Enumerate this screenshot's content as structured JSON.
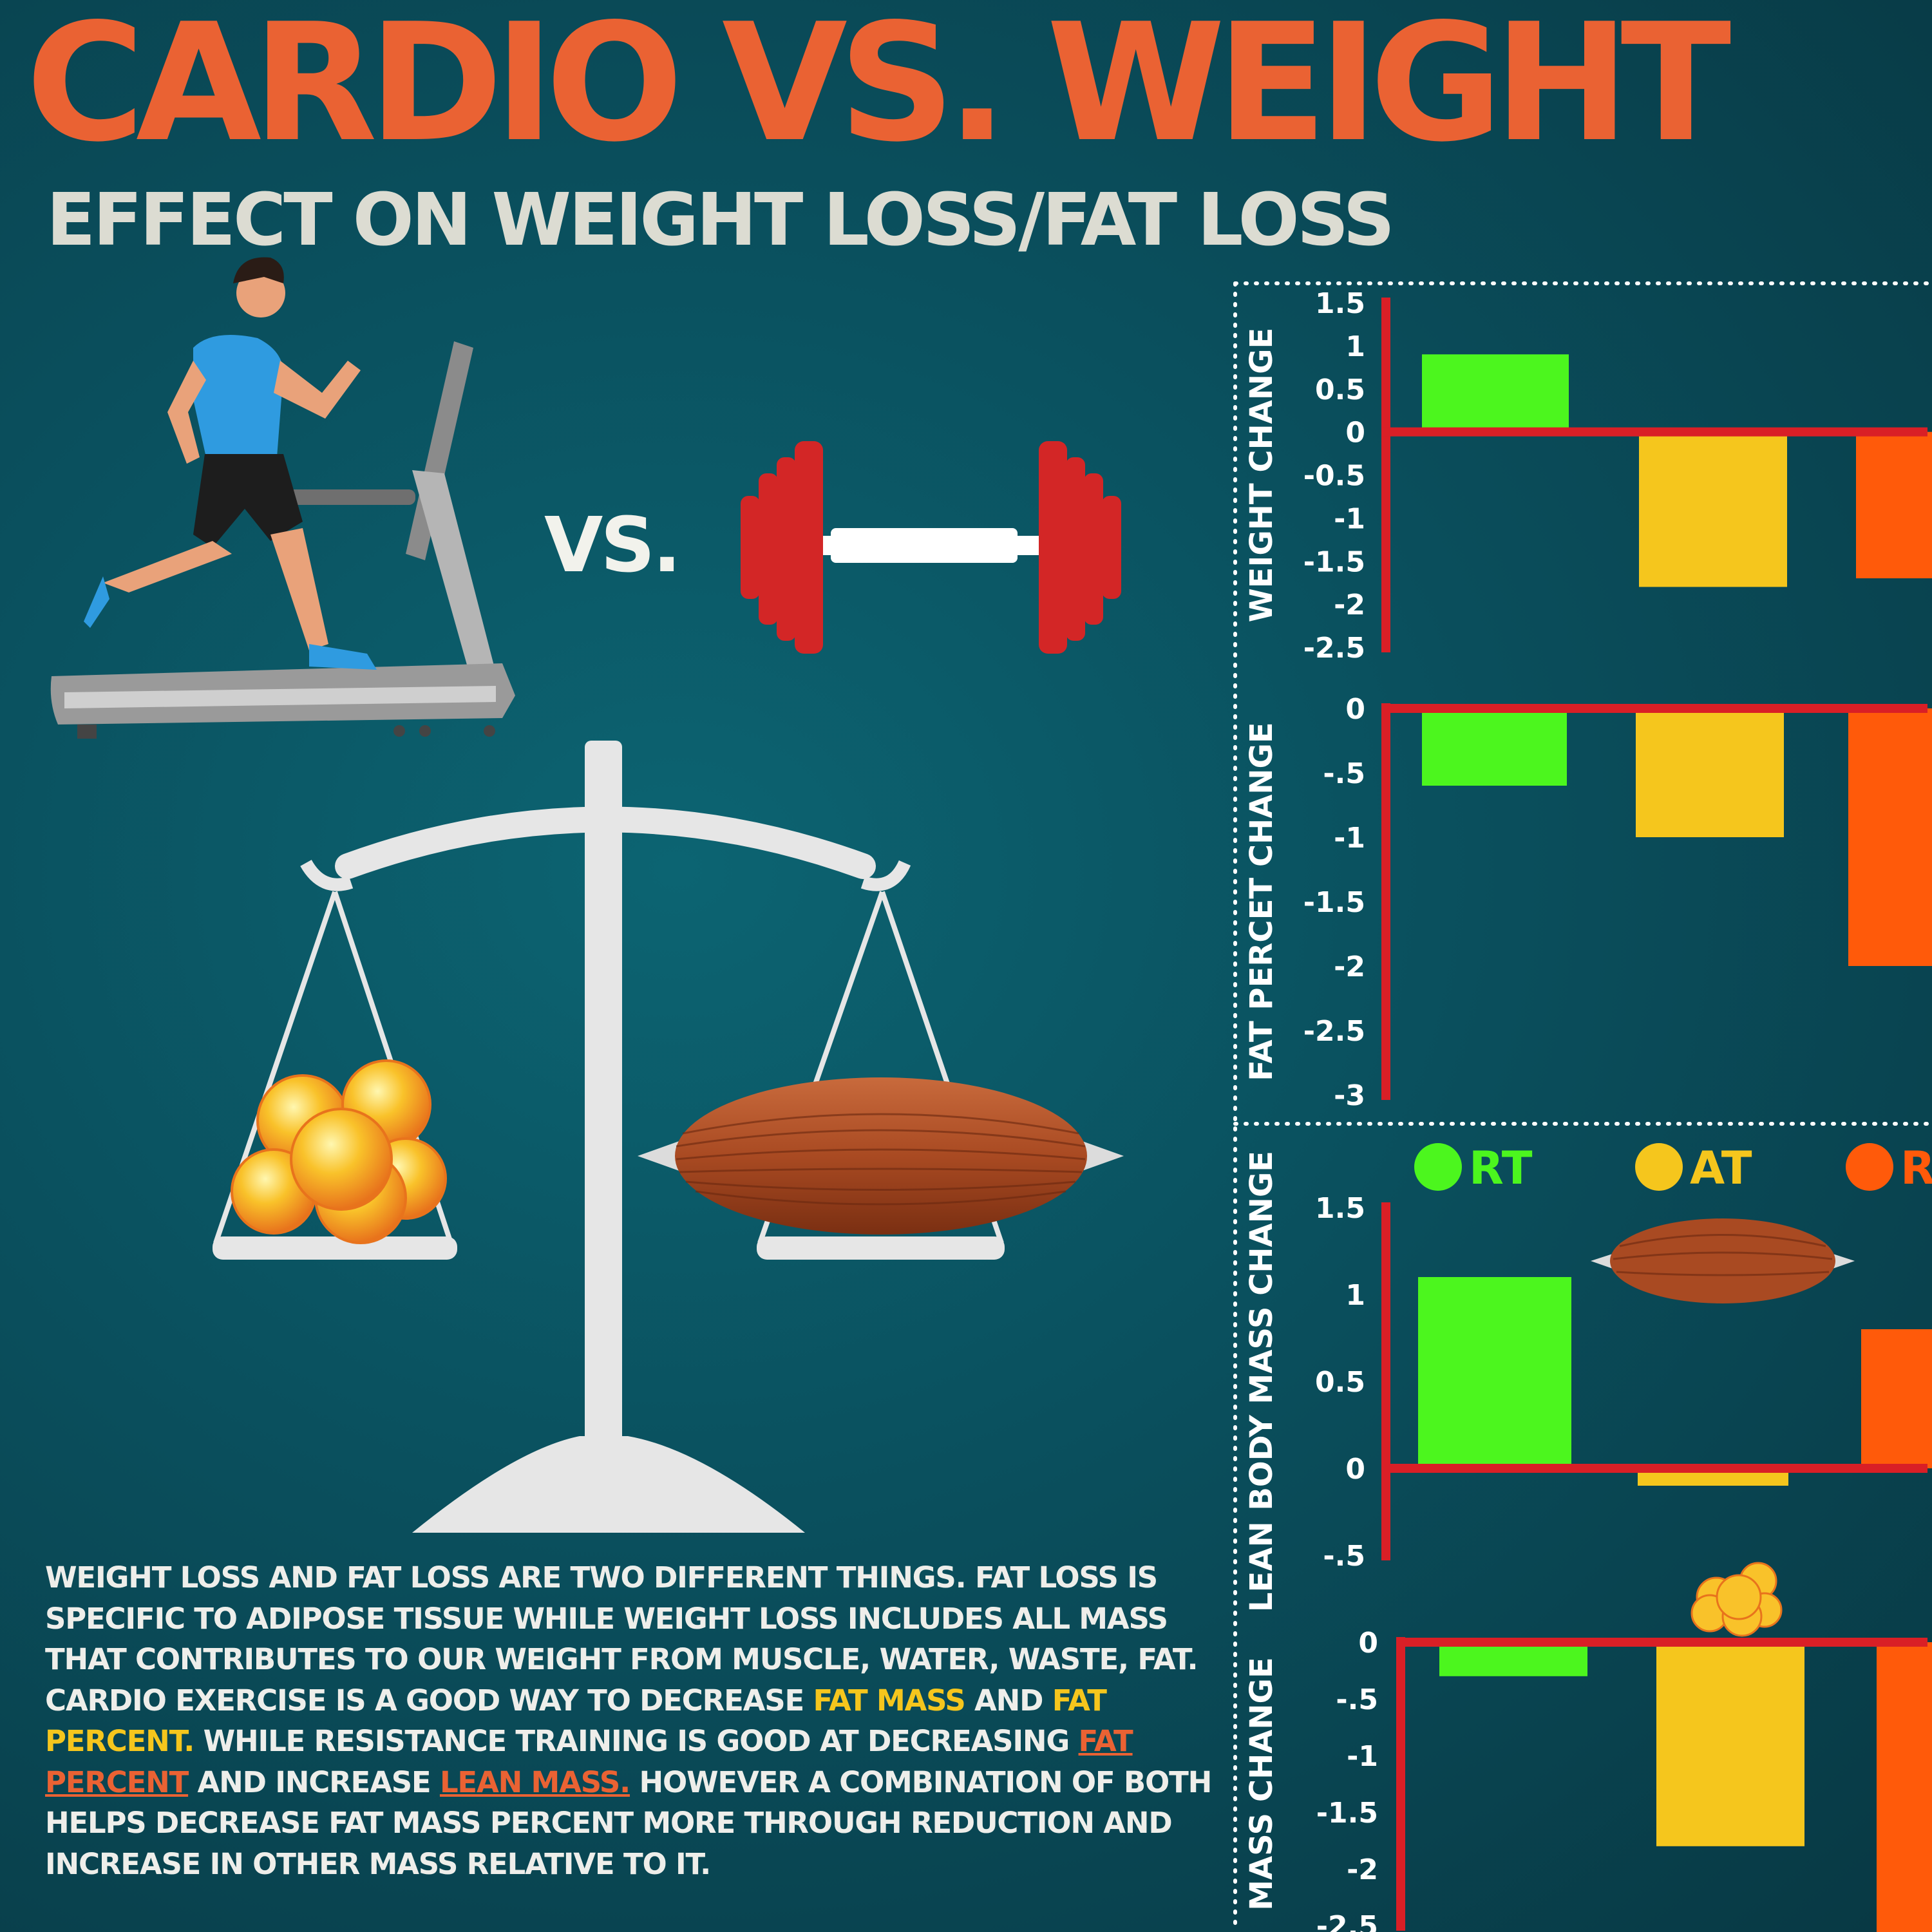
{
  "header": {
    "title": "CARDIO VS. WEIGHT",
    "subtitle": "EFFECT ON WEIGHT LOSS/FAT LOSS"
  },
  "illustration": {
    "vs_label": "VS.",
    "icons": [
      "treadmill-runner-icon",
      "dumbbell-icon",
      "balance-scale-icon",
      "fat-cells-icon",
      "muscle-icon"
    ]
  },
  "body_text": {
    "p1": "WEIGHT LOSS AND FAT LOSS ARE TWO DIFFERENT THINGS. FAT LOSS IS SPECIFIC TO ADIPOSE TISSUE WHILE WEIGHT LOSS INCLUDES ALL MASS THAT CONTRIBUTES TO OUR WEIGHT FROM MUSCLE, WATER, WASTE, FAT. CARDIO EXERCISE IS A GOOD WAY TO DECREASE ",
    "fat_mass": "FAT MASS",
    "and1": " AND ",
    "fat_percent_1": "FAT PERCENT.",
    "p2": " WHILE RESISTANCE TRAINING IS GOOD AT DECREASING ",
    "fat_percent_2": "FAT PERCENT",
    "and2": " AND INCREASE ",
    "lean_mass": "LEAN MASS.",
    "p3": " HOWEVER A COMBINATION OF BOTH HELPS DECREASE FAT MASS PERCENT MORE THROUGH REDUCTION AND INCREASE IN OTHER MASS RELATIVE TO IT."
  },
  "colors": {
    "RT": "#4cf61e",
    "AT": "#f5c61d",
    "third": "#ff5a0a",
    "axis": "#d91f26",
    "title": "#ea6233"
  },
  "chart_data": [
    {
      "type": "bar",
      "ylabel": "WEIGHT CHANGE",
      "ylim": [
        -2.5,
        1.5
      ],
      "ticks": [
        "1.5",
        "1",
        "0.5",
        "0",
        "-0.5",
        "-1",
        "-1.5",
        "-2",
        "-2.5"
      ],
      "tick_values": [
        1.5,
        1,
        0.5,
        0,
        -0.5,
        -1,
        -1.5,
        -2,
        -2.5
      ],
      "series": [
        {
          "key": "RT",
          "values": [
            0.9
          ]
        },
        {
          "key": "AT",
          "values": [
            -1.8
          ]
        },
        {
          "key": "third",
          "values": [
            -1.7
          ]
        }
      ]
    },
    {
      "type": "bar",
      "ylabel": "FAT PERCET CHANGE",
      "ylim": [
        -3,
        0
      ],
      "ticks": [
        "0",
        "-.5",
        "-1",
        "-1.5",
        "-2",
        "-2.5",
        "-3"
      ],
      "tick_values": [
        0,
        -0.5,
        -1,
        -1.5,
        -2,
        -2.5,
        -3
      ],
      "series": [
        {
          "key": "RT",
          "values": [
            -0.6
          ]
        },
        {
          "key": "AT",
          "values": [
            -1.0
          ]
        },
        {
          "key": "third",
          "values": [
            -2.0
          ]
        }
      ]
    },
    {
      "type": "bar",
      "ylabel": "LEAN BODY MASS CHANGE",
      "ylim": [
        -0.5,
        1.5
      ],
      "ticks": [
        "1.5",
        "1",
        "0.5",
        "0",
        "-.5"
      ],
      "tick_values": [
        1.5,
        1,
        0.5,
        0,
        -0.5
      ],
      "legend": [
        {
          "key": "RT",
          "label": "RT"
        },
        {
          "key": "AT",
          "label": "AT"
        },
        {
          "key": "third",
          "label": "R"
        }
      ],
      "series": [
        {
          "key": "RT",
          "values": [
            1.1
          ]
        },
        {
          "key": "AT",
          "values": [
            -0.1
          ]
        },
        {
          "key": "third",
          "values": [
            0.8
          ]
        }
      ]
    },
    {
      "type": "bar",
      "ylabel": "MASS CHANGE",
      "ylim": [
        -2.5,
        0
      ],
      "ticks": [
        "0",
        "-.5",
        "-1",
        "-1.5",
        "-2",
        "-2.5"
      ],
      "tick_values": [
        0,
        -0.5,
        -1,
        -1.5,
        -2,
        -2.5
      ],
      "series": [
        {
          "key": "RT",
          "values": [
            -0.3
          ]
        },
        {
          "key": "AT",
          "values": [
            -1.8
          ]
        },
        {
          "key": "third",
          "values": [
            -2.6
          ]
        }
      ]
    }
  ]
}
